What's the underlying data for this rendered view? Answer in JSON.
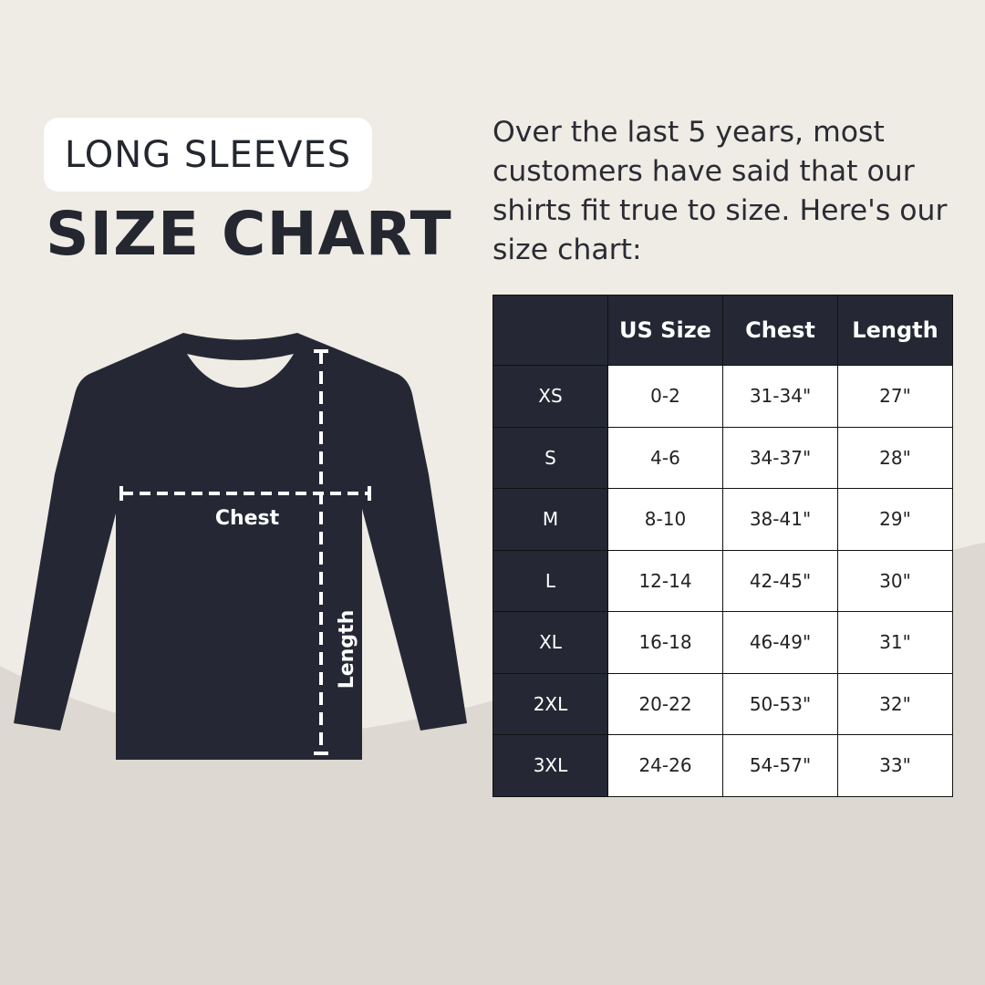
{
  "header": {
    "badge": "LONG SLEEVES",
    "title": "SIZE CHART"
  },
  "intro": "Over the last 5 years, most customers have said that our shirts fit true to size. Here's our size chart:",
  "diagram": {
    "chest_label": "Chest",
    "length_label": "Length"
  },
  "table": {
    "columns": [
      "",
      "US Size",
      "Chest",
      "Length"
    ],
    "rows": [
      {
        "size": "XS",
        "us": "0-2",
        "chest": "31-34\"",
        "length": "27\""
      },
      {
        "size": "S",
        "us": "4-6",
        "chest": "34-37\"",
        "length": "28\""
      },
      {
        "size": "M",
        "us": "8-10",
        "chest": "38-41\"",
        "length": "29\""
      },
      {
        "size": "L",
        "us": "12-14",
        "chest": "42-45\"",
        "length": "30\""
      },
      {
        "size": "XL",
        "us": "16-18",
        "chest": "46-49\"",
        "length": "31\""
      },
      {
        "size": "2XL",
        "us": "20-22",
        "chest": "50-53\"",
        "length": "32\""
      },
      {
        "size": "3XL",
        "us": "24-26",
        "chest": "54-57\"",
        "length": "33\""
      }
    ]
  },
  "colors": {
    "background": "#efebe5",
    "background_curve": "#ddd8d1",
    "dark": "#252834"
  }
}
